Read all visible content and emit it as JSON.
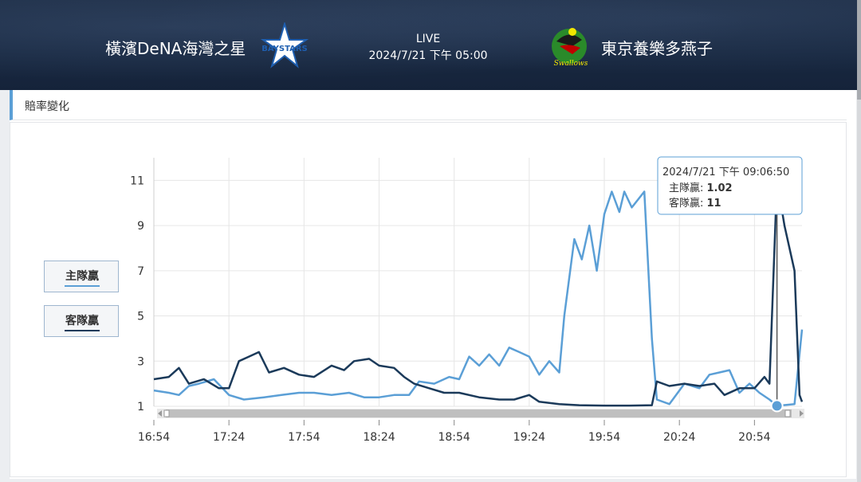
{
  "header": {
    "home_team": "橫濱DeNA海灣之星",
    "away_team": "東京養樂多燕子",
    "status": "LIVE",
    "datetime": "2024/7/21 下午 05:00",
    "home_logo_text": "BAYSTARS",
    "away_logo_text": "Swallows"
  },
  "panel": {
    "title": "賠率變化"
  },
  "legend": {
    "home": {
      "label": "主隊贏",
      "color": "#5b9fd6"
    },
    "away": {
      "label": "客隊贏",
      "color": "#1b3a5a"
    }
  },
  "tooltip": {
    "time": "2024/7/21 下午 09:06:50",
    "home_label": "主隊贏: ",
    "home_value": "1.02",
    "away_label": "客隊贏: ",
    "away_value": "11"
  },
  "chart_data": {
    "type": "line",
    "ylim": [
      1,
      12
    ],
    "yticks": [
      1,
      3,
      5,
      7,
      9,
      11
    ],
    "xlim": [
      "16:54",
      "21:13"
    ],
    "xticks": [
      "16:54",
      "17:24",
      "17:54",
      "18:24",
      "18:54",
      "19:24",
      "19:54",
      "20:24",
      "20:54"
    ],
    "grid": true,
    "series": [
      {
        "name": "主隊贏",
        "color": "#5b9fd6",
        "points": [
          [
            "16:54",
            1.7
          ],
          [
            "17:00",
            1.6
          ],
          [
            "17:04",
            1.5
          ],
          [
            "17:08",
            1.9
          ],
          [
            "17:12",
            2.0
          ],
          [
            "17:18",
            2.2
          ],
          [
            "17:24",
            1.5
          ],
          [
            "17:30",
            1.3
          ],
          [
            "17:38",
            1.4
          ],
          [
            "17:45",
            1.5
          ],
          [
            "17:52",
            1.6
          ],
          [
            "17:58",
            1.6
          ],
          [
            "18:05",
            1.5
          ],
          [
            "18:12",
            1.6
          ],
          [
            "18:18",
            1.4
          ],
          [
            "18:24",
            1.4
          ],
          [
            "18:30",
            1.5
          ],
          [
            "18:36",
            1.5
          ],
          [
            "18:40",
            2.1
          ],
          [
            "18:46",
            2.0
          ],
          [
            "18:52",
            2.3
          ],
          [
            "18:56",
            2.2
          ],
          [
            "19:00",
            3.2
          ],
          [
            "19:04",
            2.8
          ],
          [
            "19:08",
            3.3
          ],
          [
            "19:12",
            2.8
          ],
          [
            "19:16",
            3.6
          ],
          [
            "19:20",
            3.4
          ],
          [
            "19:24",
            3.2
          ],
          [
            "19:28",
            2.4
          ],
          [
            "19:32",
            3.0
          ],
          [
            "19:36",
            2.5
          ],
          [
            "19:38",
            5.0
          ],
          [
            "19:42",
            8.4
          ],
          [
            "19:45",
            7.5
          ],
          [
            "19:48",
            9.0
          ],
          [
            "19:51",
            7.0
          ],
          [
            "19:54",
            9.5
          ],
          [
            "19:57",
            10.5
          ],
          [
            "20:00",
            9.6
          ],
          [
            "20:02",
            10.5
          ],
          [
            "20:05",
            9.8
          ],
          [
            "20:10",
            10.5
          ],
          [
            "20:13",
            4.0
          ],
          [
            "20:15",
            1.3
          ],
          [
            "20:20",
            1.1
          ],
          [
            "20:26",
            2.0
          ],
          [
            "20:32",
            1.8
          ],
          [
            "20:36",
            2.4
          ],
          [
            "20:40",
            2.5
          ],
          [
            "20:44",
            2.6
          ],
          [
            "20:48",
            1.6
          ],
          [
            "20:52",
            2.0
          ],
          [
            "20:56",
            1.6
          ],
          [
            "21:00",
            1.3
          ],
          [
            "21:03",
            1.02
          ],
          [
            "21:10",
            1.1
          ],
          [
            "21:13",
            4.4
          ]
        ]
      },
      {
        "name": "客隊贏",
        "color": "#1b3a5a",
        "points": [
          [
            "16:54",
            2.2
          ],
          [
            "17:00",
            2.3
          ],
          [
            "17:04",
            2.7
          ],
          [
            "17:08",
            2.0
          ],
          [
            "17:14",
            2.2
          ],
          [
            "17:20",
            1.8
          ],
          [
            "17:24",
            1.8
          ],
          [
            "17:28",
            3.0
          ],
          [
            "17:32",
            3.2
          ],
          [
            "17:36",
            3.4
          ],
          [
            "17:40",
            2.5
          ],
          [
            "17:46",
            2.7
          ],
          [
            "17:52",
            2.4
          ],
          [
            "17:58",
            2.3
          ],
          [
            "18:05",
            2.8
          ],
          [
            "18:10",
            2.6
          ],
          [
            "18:14",
            3.0
          ],
          [
            "18:20",
            3.1
          ],
          [
            "18:24",
            2.8
          ],
          [
            "18:30",
            2.7
          ],
          [
            "18:34",
            2.3
          ],
          [
            "18:38",
            2.0
          ],
          [
            "18:44",
            1.8
          ],
          [
            "18:50",
            1.6
          ],
          [
            "18:56",
            1.6
          ],
          [
            "19:04",
            1.4
          ],
          [
            "19:12",
            1.3
          ],
          [
            "19:18",
            1.3
          ],
          [
            "19:24",
            1.5
          ],
          [
            "19:28",
            1.2
          ],
          [
            "19:36",
            1.1
          ],
          [
            "19:44",
            1.05
          ],
          [
            "19:54",
            1.03
          ],
          [
            "20:04",
            1.03
          ],
          [
            "20:13",
            1.05
          ],
          [
            "20:15",
            2.1
          ],
          [
            "20:20",
            1.9
          ],
          [
            "20:26",
            2.0
          ],
          [
            "20:32",
            1.9
          ],
          [
            "20:38",
            2.0
          ],
          [
            "20:42",
            1.5
          ],
          [
            "20:48",
            1.8
          ],
          [
            "20:54",
            1.8
          ],
          [
            "20:58",
            2.3
          ],
          [
            "21:00",
            2.0
          ],
          [
            "21:03",
            11
          ],
          [
            "21:06",
            9.0
          ],
          [
            "21:10",
            7.0
          ],
          [
            "21:12",
            1.5
          ],
          [
            "21:13",
            1.2
          ]
        ]
      }
    ]
  }
}
